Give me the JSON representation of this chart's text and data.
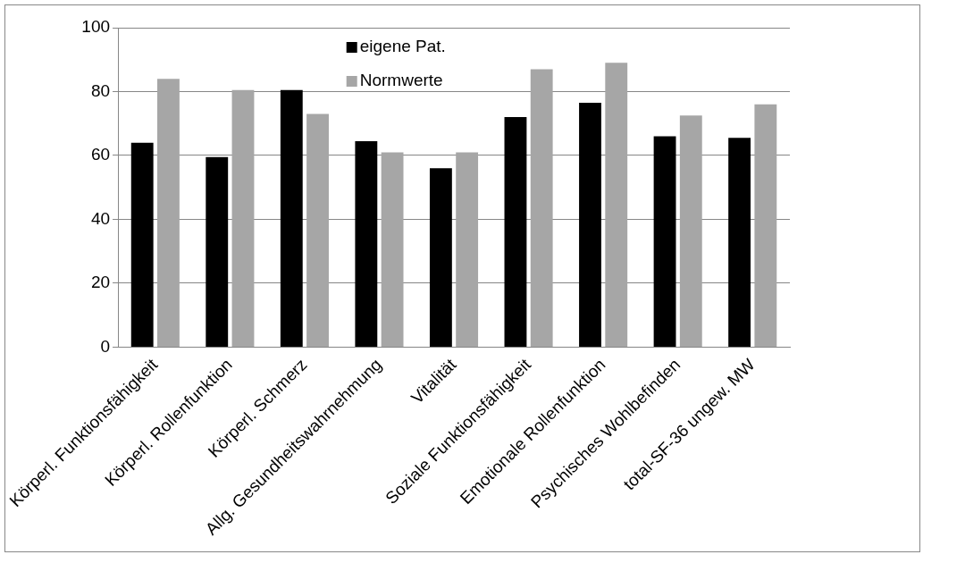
{
  "chart_data": {
    "type": "bar",
    "categories": [
      "Körperl. Funktionsfähigkeit",
      "Körperl. Rollenfunktion",
      "Körperl. Schmerz",
      "Allg. Gesundheitswahrnehmung",
      "Vitalität",
      "Soziale Funktionsfähigkeit",
      "Emotionale Rollenfunktion",
      "Psychisches Wohlbefinden",
      "total-SF-36 ungew. MW"
    ],
    "series": [
      {
        "name": "eigene Pat.",
        "color": "#000000",
        "values": [
          64,
          59.5,
          80.5,
          64.5,
          56,
          72,
          76.5,
          66,
          65.5
        ]
      },
      {
        "name": "Normwerte",
        "color": "#a6a6a6",
        "values": [
          84,
          80.5,
          73,
          61,
          61,
          87,
          89,
          72.5,
          76
        ]
      }
    ],
    "ylim": [
      0,
      100
    ],
    "yticks": [
      0,
      20,
      40,
      60,
      80,
      100
    ],
    "grid": "y",
    "legend": "top"
  }
}
